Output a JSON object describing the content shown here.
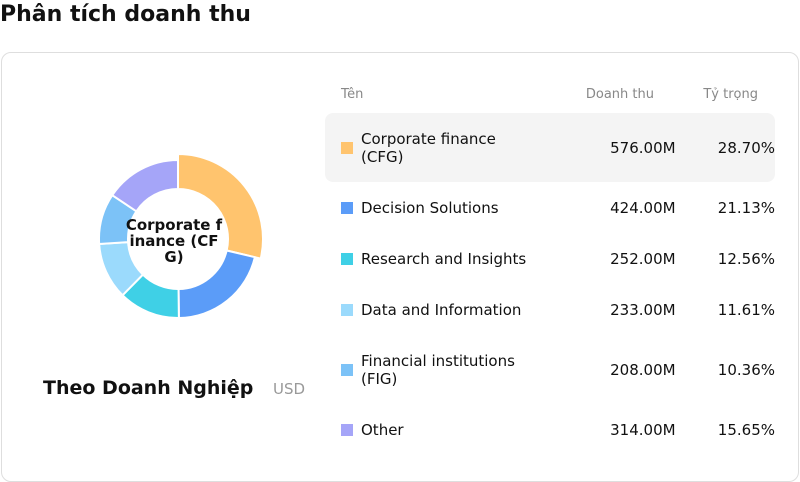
{
  "header": {
    "title": "Phân tích doanh thu"
  },
  "chart_data": {
    "type": "pie",
    "title": "Theo Doanh Nghiệp",
    "unit": "USD",
    "categories": [
      "Corporate finance (CFG)",
      "Decision Solutions",
      "Research and Insights",
      "Data and Information",
      "Financial institutions (FIG)",
      "Other"
    ],
    "values": [
      28.7,
      21.13,
      12.56,
      11.61,
      10.36,
      15.65
    ],
    "value_labels": [
      "28.70%",
      "21.13%",
      "12.56%",
      "11.61%",
      "10.36%",
      "15.65%"
    ],
    "colors": [
      "#ffc46e",
      "#5b9cf8",
      "#3fd0e6",
      "#9bdafc",
      "#7cc2f7",
      "#a5a5f8"
    ]
  },
  "table": {
    "columns": [
      "Tên",
      "Doanh thu",
      "Tỷ trọng"
    ],
    "revenue": [
      "576.00M",
      "424.00M",
      "252.00M",
      "233.00M",
      "208.00M",
      "314.00M"
    ]
  }
}
